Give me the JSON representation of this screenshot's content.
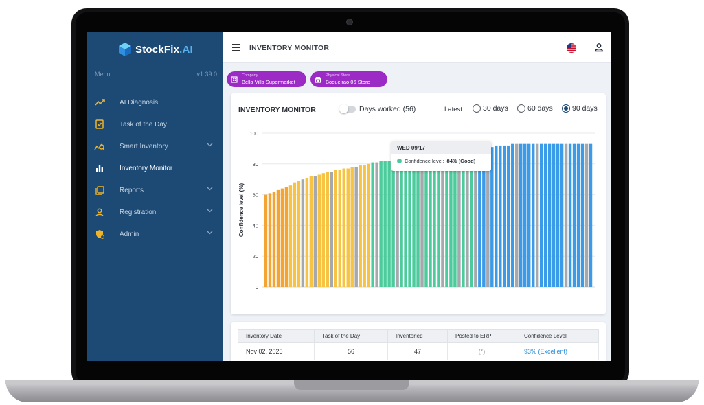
{
  "app": {
    "brand_name": "StockFix",
    "brand_suffix": ".AI",
    "menu_label": "Menu",
    "version": "v1.39.0"
  },
  "sidebar": {
    "items": [
      {
        "label": "AI Diagnosis",
        "icon": "trend-icon",
        "has_chevron": false,
        "active": false
      },
      {
        "label": "Task of the Day",
        "icon": "task-icon",
        "has_chevron": false,
        "active": false
      },
      {
        "label": "Smart Inventory",
        "icon": "smart-inventory-icon",
        "has_chevron": true,
        "active": false
      },
      {
        "label": "Inventory Monitor",
        "icon": "bar-chart-icon",
        "has_chevron": false,
        "active": true
      },
      {
        "label": "Reports",
        "icon": "reports-icon",
        "has_chevron": true,
        "active": false
      },
      {
        "label": "Registration",
        "icon": "user-icon",
        "has_chevron": true,
        "active": false
      },
      {
        "label": "Admin",
        "icon": "shield-icon",
        "has_chevron": true,
        "active": false
      }
    ]
  },
  "topbar": {
    "title": "INVENTORY MONITOR"
  },
  "chips": {
    "company_label": "Company",
    "company_value": "Bella Villa Supermarket",
    "store_label": "Physical Store",
    "store_value": "Boqueirao 06 Store"
  },
  "monitor": {
    "title": "INVENTORY MONITOR",
    "toggle_label": "Days worked (56)",
    "toggle_on": false,
    "latest_label": "Latest:",
    "ranges": [
      "30 days",
      "60 days",
      "90 days"
    ],
    "selected_range": "90 days"
  },
  "tooltip": {
    "date": "WED 09/17",
    "label": "Confidence level:",
    "value": "84% (Good)"
  },
  "chart_data": {
    "type": "bar",
    "title": "",
    "xlabel": "",
    "ylabel": "Confidence level (%)",
    "ylim": [
      0,
      100
    ],
    "yticks": [
      0,
      20,
      40,
      60,
      80,
      100
    ],
    "grid": true,
    "colors": {
      "yellow": "#f6c344",
      "orange": "#f3a433",
      "gray": "#a5a8ad",
      "green": "#4ccc9c",
      "blue": "#3b9be8"
    },
    "values": [
      60,
      61,
      62,
      63,
      64,
      65,
      66,
      68,
      69,
      70,
      71,
      72,
      72,
      73,
      74,
      75,
      75,
      76,
      76,
      77,
      77,
      78,
      78,
      79,
      79,
      80,
      81,
      81,
      82,
      82,
      82,
      83,
      83,
      84,
      84,
      85,
      85,
      85,
      86,
      86,
      86,
      87,
      87,
      87,
      88,
      88,
      88,
      89,
      89,
      89,
      90,
      90,
      90,
      90,
      91,
      91,
      92,
      92,
      92,
      92,
      93,
      93,
      93,
      93,
      93,
      93,
      93,
      93,
      93,
      93,
      93,
      93,
      93,
      93,
      93,
      93,
      93,
      93,
      93,
      93
    ],
    "bar_colors": [
      "orange",
      "orange",
      "orange",
      "orange",
      "orange",
      "orange",
      "yellow",
      "yellow",
      "yellow",
      "gray",
      "yellow",
      "yellow",
      "gray",
      "yellow",
      "yellow",
      "yellow",
      "gray",
      "yellow",
      "yellow",
      "yellow",
      "yellow",
      "yellow",
      "gray",
      "yellow",
      "yellow",
      "yellow",
      "green",
      "gray",
      "green",
      "green",
      "green",
      "green",
      "gray",
      "green",
      "green",
      "green",
      "green",
      "green",
      "gray",
      "green",
      "green",
      "green",
      "green",
      "gray",
      "green",
      "green",
      "green",
      "gray",
      "green",
      "gray",
      "green",
      "gray",
      "blue",
      "blue",
      "gray",
      "blue",
      "blue",
      "blue",
      "blue",
      "blue",
      "blue",
      "gray",
      "blue",
      "blue",
      "blue",
      "blue",
      "gray",
      "blue",
      "blue",
      "blue",
      "blue",
      "blue",
      "blue",
      "gray",
      "blue",
      "blue",
      "blue",
      "blue",
      "gray",
      "blue"
    ]
  },
  "table": {
    "headers": [
      "Inventory Date",
      "Task of the Day",
      "Inventoried",
      "Posted to ERP",
      "Confidence Level"
    ],
    "rows": [
      {
        "date": "Nov 02, 2025",
        "task": "56",
        "inventoried": "47",
        "posted": "(*)",
        "confidence": "93%  (Excellent)"
      }
    ]
  }
}
